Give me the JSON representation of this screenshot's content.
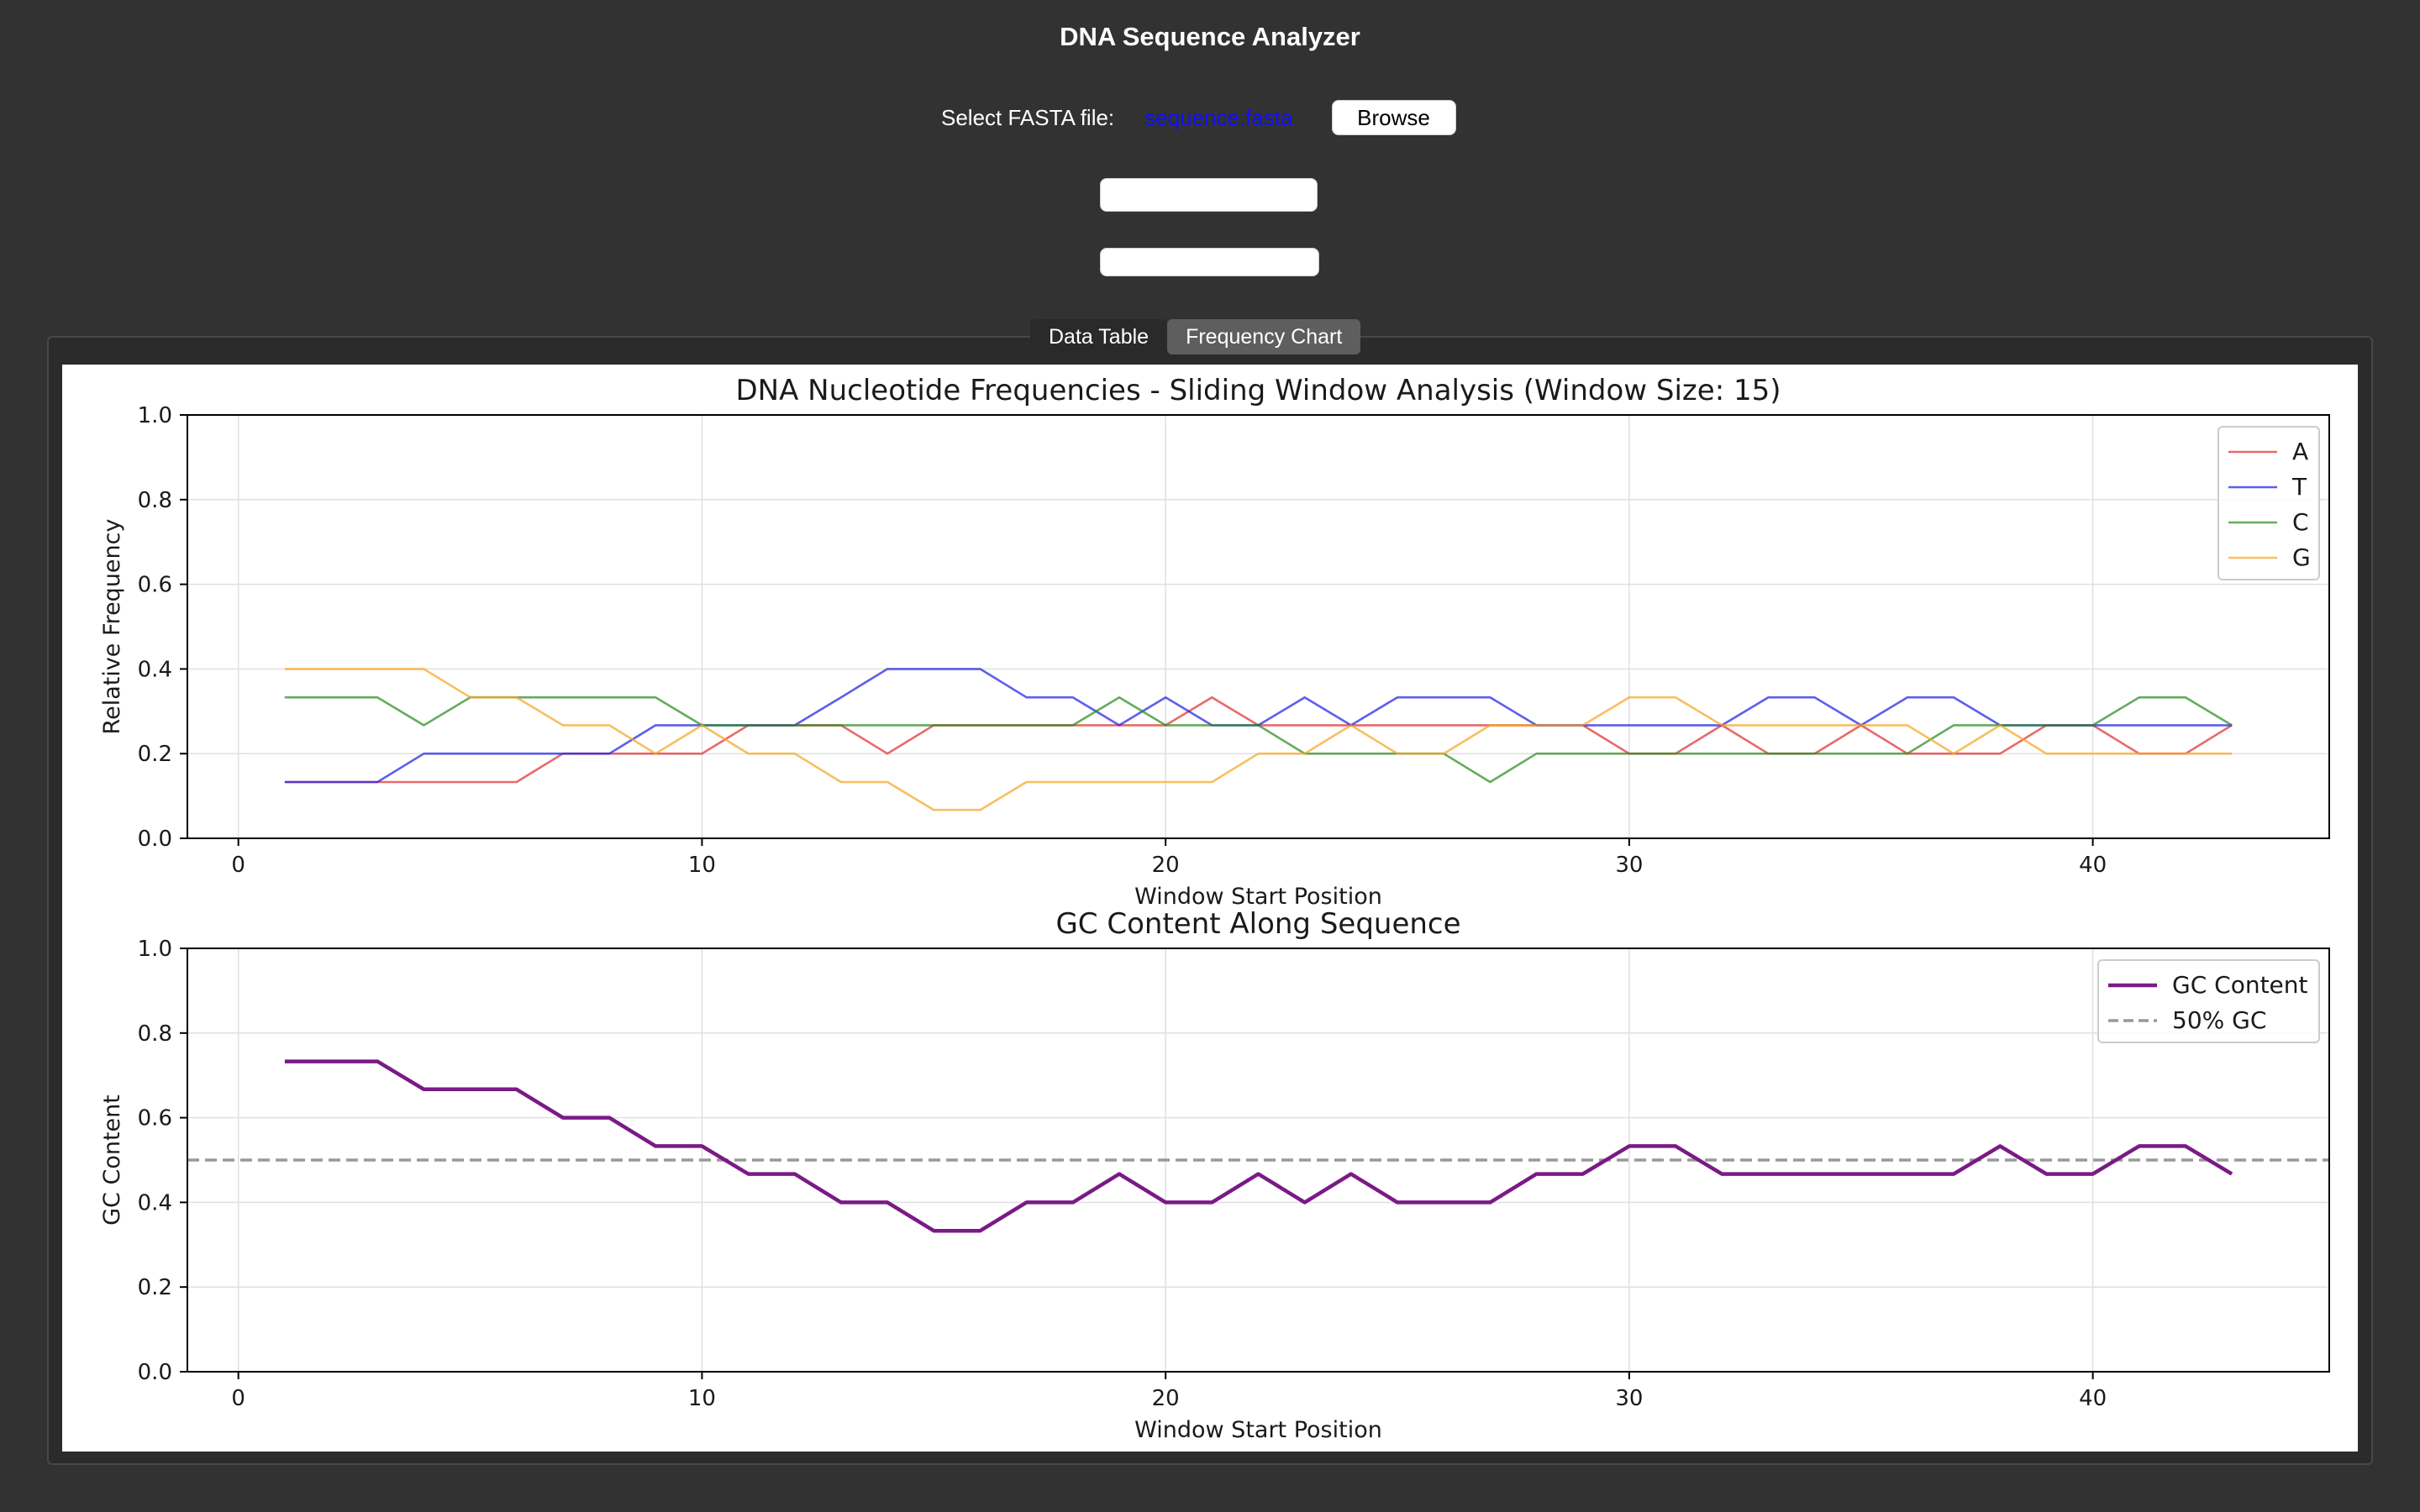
{
  "app": {
    "title": "DNA Sequence Analyzer"
  },
  "file_picker": {
    "label": "Select FASTA file:",
    "filename": "sequence.fasta",
    "browse_label": "Browse"
  },
  "tabs": [
    {
      "label": "Data Table",
      "active": false
    },
    {
      "label": "Frequency Chart",
      "active": true
    }
  ],
  "colors": {
    "background": "#323232",
    "A": "#e03030",
    "T": "#2020e8",
    "C": "#2a8a20",
    "G": "#f5a623",
    "gc": "#7a1a86",
    "gc_ref": "#999999"
  },
  "chart_data": [
    {
      "type": "line",
      "title": "DNA Nucleotide Frequencies - Sliding Window Analysis (Window Size: 15)",
      "xlabel": "Window Start Position",
      "ylabel": "Relative Frequency",
      "xlim": [
        -1.1,
        45.1
      ],
      "ylim": [
        0,
        1
      ],
      "xticks": [
        0,
        10,
        20,
        30,
        40
      ],
      "yticks": [
        0.0,
        0.2,
        0.4,
        0.6,
        0.8,
        1.0
      ],
      "grid": true,
      "legend": "top-right",
      "x": [
        1,
        2,
        3,
        4,
        5,
        6,
        7,
        8,
        9,
        10,
        11,
        12,
        13,
        14,
        15,
        16,
        17,
        18,
        19,
        20,
        21,
        22,
        23,
        24,
        25,
        26,
        27,
        28,
        29,
        30,
        31,
        32,
        33,
        34,
        35,
        36,
        37,
        38,
        39,
        40,
        41,
        42,
        43
      ],
      "series": [
        {
          "name": "A",
          "color": "#e03030",
          "values": [
            0.133,
            0.133,
            0.133,
            0.133,
            0.133,
            0.133,
            0.2,
            0.2,
            0.2,
            0.2,
            0.267,
            0.267,
            0.267,
            0.2,
            0.267,
            0.267,
            0.267,
            0.267,
            0.267,
            0.267,
            0.333,
            0.267,
            0.267,
            0.267,
            0.267,
            0.267,
            0.267,
            0.267,
            0.267,
            0.2,
            0.2,
            0.267,
            0.2,
            0.2,
            0.267,
            0.2,
            0.2,
            0.2,
            0.267,
            0.267,
            0.2,
            0.2,
            0.267
          ]
        },
        {
          "name": "T",
          "color": "#2020e8",
          "values": [
            0.133,
            0.133,
            0.133,
            0.2,
            0.2,
            0.2,
            0.2,
            0.2,
            0.267,
            0.267,
            0.267,
            0.267,
            0.333,
            0.4,
            0.4,
            0.4,
            0.333,
            0.333,
            0.267,
            0.333,
            0.267,
            0.267,
            0.333,
            0.267,
            0.333,
            0.333,
            0.333,
            0.267,
            0.267,
            0.267,
            0.267,
            0.267,
            0.333,
            0.333,
            0.267,
            0.333,
            0.333,
            0.267,
            0.267,
            0.267,
            0.267,
            0.267,
            0.267
          ]
        },
        {
          "name": "C",
          "color": "#2a8a20",
          "values": [
            0.333,
            0.333,
            0.333,
            0.267,
            0.333,
            0.333,
            0.333,
            0.333,
            0.333,
            0.267,
            0.267,
            0.267,
            0.267,
            0.267,
            0.267,
            0.267,
            0.267,
            0.267,
            0.333,
            0.267,
            0.267,
            0.267,
            0.2,
            0.2,
            0.2,
            0.2,
            0.133,
            0.2,
            0.2,
            0.2,
            0.2,
            0.2,
            0.2,
            0.2,
            0.2,
            0.2,
            0.267,
            0.267,
            0.267,
            0.267,
            0.333,
            0.333,
            0.267
          ]
        },
        {
          "name": "G",
          "color": "#f5a623",
          "values": [
            0.4,
            0.4,
            0.4,
            0.4,
            0.333,
            0.333,
            0.267,
            0.267,
            0.2,
            0.267,
            0.2,
            0.2,
            0.133,
            0.133,
            0.067,
            0.067,
            0.133,
            0.133,
            0.133,
            0.133,
            0.133,
            0.2,
            0.2,
            0.267,
            0.2,
            0.2,
            0.267,
            0.267,
            0.267,
            0.333,
            0.333,
            0.267,
            0.267,
            0.267,
            0.267,
            0.267,
            0.2,
            0.267,
            0.2,
            0.2,
            0.2,
            0.2,
            0.2
          ]
        }
      ]
    },
    {
      "type": "line",
      "title": "GC Content Along Sequence",
      "xlabel": "Window Start Position",
      "ylabel": "GC Content",
      "xlim": [
        -1.1,
        45.1
      ],
      "ylim": [
        0,
        1
      ],
      "xticks": [
        0,
        10,
        20,
        30,
        40
      ],
      "yticks": [
        0.0,
        0.2,
        0.4,
        0.6,
        0.8,
        1.0
      ],
      "grid": true,
      "legend": "top-right",
      "x": [
        1,
        2,
        3,
        4,
        5,
        6,
        7,
        8,
        9,
        10,
        11,
        12,
        13,
        14,
        15,
        16,
        17,
        18,
        19,
        20,
        21,
        22,
        23,
        24,
        25,
        26,
        27,
        28,
        29,
        30,
        31,
        32,
        33,
        34,
        35,
        36,
        37,
        38,
        39,
        40,
        41,
        42,
        43
      ],
      "series": [
        {
          "name": "GC Content",
          "color": "#7a1a86",
          "values": [
            0.733,
            0.733,
            0.733,
            0.667,
            0.667,
            0.667,
            0.6,
            0.6,
            0.533,
            0.533,
            0.467,
            0.467,
            0.4,
            0.4,
            0.333,
            0.333,
            0.4,
            0.4,
            0.467,
            0.4,
            0.4,
            0.467,
            0.4,
            0.467,
            0.4,
            0.4,
            0.4,
            0.467,
            0.467,
            0.533,
            0.533,
            0.467,
            0.467,
            0.467,
            0.467,
            0.467,
            0.467,
            0.533,
            0.467,
            0.467,
            0.533,
            0.533,
            0.467
          ]
        }
      ],
      "reference_line": {
        "name": "50% GC",
        "y": 0.5,
        "style": "dashed",
        "color": "#999999"
      }
    }
  ]
}
